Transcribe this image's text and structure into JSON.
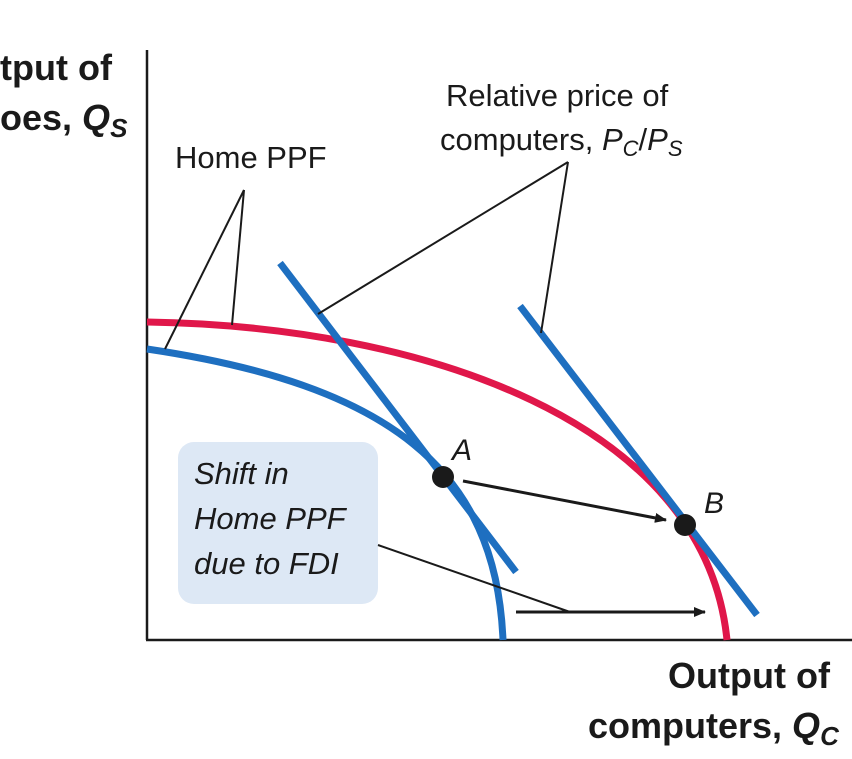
{
  "axes": {
    "y_title_line1": "tput of",
    "y_title_line2_prefix": "oes, ",
    "y_title_var": "Q",
    "y_title_sub": "S",
    "x_title_line1": "Output of",
    "x_title_line2_prefix": "computers, ",
    "x_title_var": "Q",
    "x_title_sub": "C"
  },
  "labels": {
    "home_ppf": "Home PPF",
    "relative_price_line1": "Relative price of",
    "relative_price_line2_prefix": "computers, ",
    "relative_price_pc": "P",
    "relative_price_pc_sub": "C",
    "relative_price_slash": "/",
    "relative_price_ps": "P",
    "relative_price_ps_sub": "S"
  },
  "points": {
    "a": "A",
    "b": "B"
  },
  "shift_box": {
    "line1": "Shift in",
    "line2": "Home PPF",
    "line3": "due to FDI"
  },
  "colors": {
    "original_ppf": "#1e6fc0",
    "new_ppf": "#e0174a",
    "price_line": "#1e6fc0",
    "axis": "#1a1a1a",
    "box_fill": "#dde8f5"
  }
}
